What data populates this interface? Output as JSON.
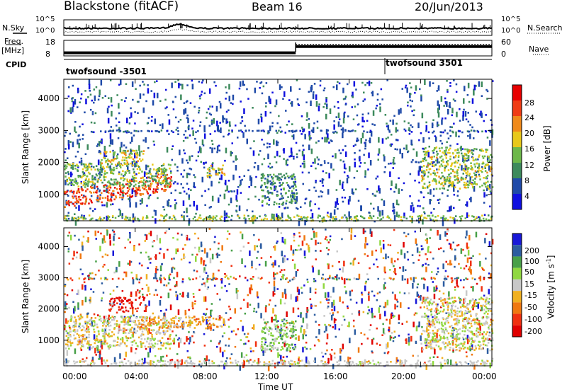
{
  "header": {
    "radar": "Blackstone (fitACF)",
    "beam": "Beam 16",
    "date": "20/Jun/2013"
  },
  "top_panels": {
    "nsky_label": "N.Sky",
    "nsky_ticks": [
      "10^5",
      "10^0"
    ],
    "nsearch_label": "N.Search",
    "nsearch_ticks": [
      "10^5",
      "10^0"
    ],
    "freq_label": "Freq.",
    "freq_unit": "[MHz]",
    "freq_ticks": [
      "18",
      "8"
    ],
    "nave_label": "Nave",
    "nave_ticks": [
      "60",
      "0"
    ],
    "cpid_label": "CPID",
    "cpid_entries": [
      {
        "name": "twofsound -3501",
        "start_hour": 0
      },
      {
        "name": "twofsound 3501",
        "start_hour": 18
      }
    ]
  },
  "axes": {
    "ylabel": "Slant Range [km]",
    "xlabel": "Time UT",
    "xticks": [
      "00:00",
      "04:00",
      "08:00",
      "12:00",
      "16:00",
      "20:00",
      "00:00"
    ],
    "yticks": [
      "1000",
      "2000",
      "3000",
      "4000"
    ]
  },
  "colorbars": {
    "power": {
      "label": "Power [dB]",
      "ticks": [
        "4",
        "8",
        "12",
        "16",
        "20",
        "24",
        "28"
      ],
      "colors": [
        "#1010e0",
        "#1f4aa8",
        "#3d8a5c",
        "#6db84a",
        "#e8c81a",
        "#f08a1a",
        "#f03c14",
        "#e80000"
      ]
    },
    "velocity": {
      "label": "Velocity [m s",
      "label_sup": "-1",
      "label_end": "]",
      "ticks": [
        "200",
        "100",
        "50",
        "15",
        "-15",
        "-50",
        "-100",
        "-200"
      ],
      "colors": [
        "#1818d8",
        "#2c5ca0",
        "#48a048",
        "#90d840",
        "#c8c8c8",
        "#f0b020",
        "#f07810",
        "#f03010",
        "#e00000"
      ]
    }
  },
  "chart_data": {
    "type": "heatmap",
    "title": "Blackstone (fitACF) Beam 16 20/Jun/2013",
    "xlabel": "Time UT",
    "ylabel": "Slant Range [km]",
    "xlim_hours": [
      0,
      24
    ],
    "ylim_km": [
      180,
      4600
    ],
    "freq_mhz": [
      {
        "from_hour": 0,
        "to_hour": 13,
        "value": 10
      },
      {
        "from_hour": 13,
        "to_hour": 24,
        "value": 14
      }
    ],
    "nave": [
      {
        "from_hour": 0,
        "to_hour": 13,
        "value": 0
      },
      {
        "from_hour": 13,
        "to_hour": 24,
        "value": 45
      }
    ],
    "power_features": [
      {
        "t": [
          0.0,
          6.0
        ],
        "r": [
          750,
          1300
        ],
        "db": 26
      },
      {
        "t": [
          0.0,
          6.0
        ],
        "r": [
          1250,
          2000
        ],
        "db": 14
      },
      {
        "t": [
          2.0,
          4.5
        ],
        "r": [
          1950,
          2400
        ],
        "db": 18
      },
      {
        "t": [
          8.0,
          9.0
        ],
        "r": [
          1550,
          1950
        ],
        "db": 18
      },
      {
        "t": [
          11.0,
          13.0
        ],
        "r": [
          700,
          1700
        ],
        "db": 10
      },
      {
        "t": [
          20.0,
          24.0
        ],
        "r": [
          1200,
          2500
        ],
        "db": 16
      }
    ],
    "velocity_features": [
      {
        "t": [
          0.0,
          6.0
        ],
        "r": [
          750,
          1800
        ],
        "v": -5
      },
      {
        "t": [
          2.5,
          4.5
        ],
        "r": [
          1950,
          2400
        ],
        "v": -220
      },
      {
        "t": [
          4.0,
          9.0
        ],
        "r": [
          1400,
          1800
        ],
        "v": -40
      },
      {
        "t": [
          11.0,
          13.0
        ],
        "r": [
          700,
          1700
        ],
        "v": 40
      },
      {
        "t": [
          20.0,
          24.0
        ],
        "r": [
          700,
          2400
        ],
        "v": 0
      }
    ]
  }
}
